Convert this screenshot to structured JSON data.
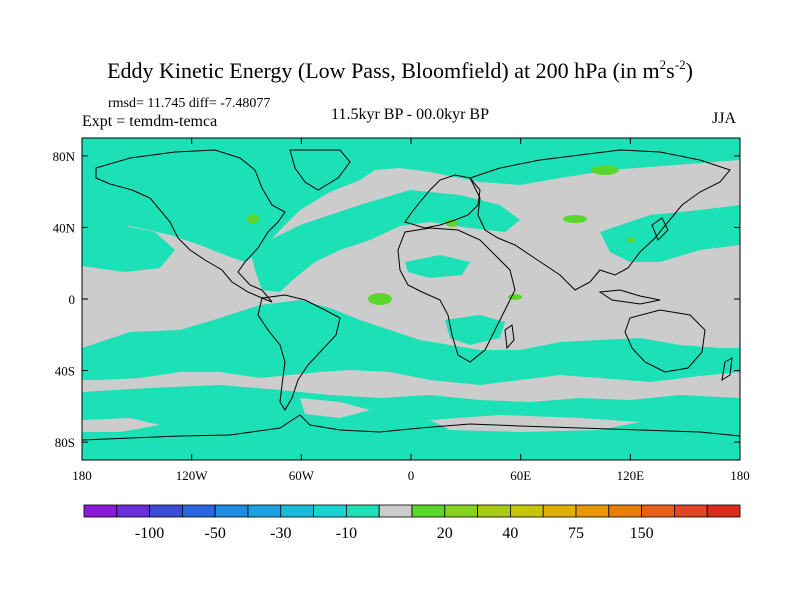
{
  "title": {
    "main": "Eddy Kinetic Energy (Low Pass, Bloomfield) at 200 hPa (in m",
    "exp1": "2",
    "mid": "s",
    "exp2": "-2",
    "close": ")"
  },
  "stats": "rmsd= 11.745 diff= -7.48077",
  "expt": "Expt = temdm-temca",
  "period": "11.5kyr BP - 00.0kyr BP",
  "season": "JJA",
  "lat_labels": [
    "80N",
    "40N",
    "0",
    "40S",
    "80S"
  ],
  "lat_values": [
    80,
    40,
    0,
    -40,
    -80
  ],
  "lon_labels": [
    "180",
    "120W",
    "60W",
    "0",
    "60E",
    "120E",
    "180"
  ],
  "lon_values": [
    -180,
    -120,
    -60,
    0,
    60,
    120,
    180
  ],
  "colorbar": {
    "colors": [
      "#8b1bdb",
      "#6a2edc",
      "#3a4bd6",
      "#2a66de",
      "#1b8ce0",
      "#1aa3e0",
      "#16bcd8",
      "#18d4d0",
      "#1ce0b6",
      "#cccccc",
      "#5bd62d",
      "#86d21c",
      "#a8cc12",
      "#c8c406",
      "#e0b000",
      "#e89800",
      "#ea7e0a",
      "#e8601a",
      "#e44426",
      "#dd2a1c"
    ],
    "labels": [
      "-100",
      "-50",
      "-30",
      "-10",
      "20",
      "40",
      "75",
      "150"
    ]
  },
  "palette": {
    "background": "#cccccc",
    "negative": "#1ce0b6",
    "positive": "#5bd62d"
  }
}
